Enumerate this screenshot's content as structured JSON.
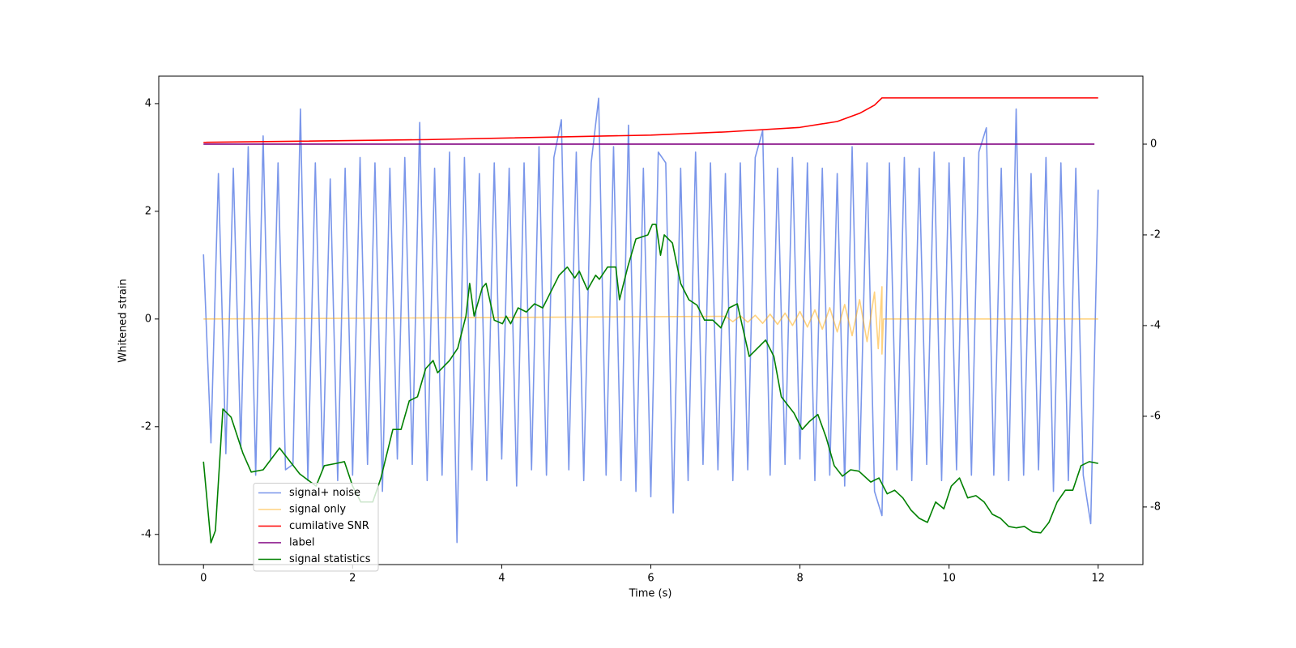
{
  "chart_data": {
    "type": "line",
    "xlabel": "Time (s)",
    "ylabel": "Whitened strain",
    "xlim": [
      -0.6,
      12.6
    ],
    "xticks": [
      0,
      2,
      4,
      6,
      8,
      10,
      12
    ],
    "ylim": [
      -4.56,
      4.51
    ],
    "yticks": [
      -4,
      -2,
      0,
      2,
      4
    ],
    "y2lim": [
      -9.27,
      1.5
    ],
    "y2ticks": [
      -8,
      -6,
      -4,
      -2,
      0
    ],
    "legend": "lower left",
    "series": [
      {
        "name": "signal+ noise",
        "color": "#4169e1",
        "alpha": 0.7,
        "x": [
          0,
          0.1,
          0.2,
          0.3,
          0.4,
          0.5,
          0.6,
          0.7,
          0.8,
          0.9,
          1,
          1.1,
          1.2,
          1.3,
          1.4,
          1.5,
          1.6,
          1.7,
          1.8,
          1.9,
          2,
          2.1,
          2.2,
          2.3,
          2.4,
          2.5,
          2.6,
          2.7,
          2.8,
          2.9,
          3,
          3.1,
          3.2,
          3.3,
          3.4,
          3.5,
          3.6,
          3.7,
          3.8,
          3.9,
          4,
          4.1,
          4.2,
          4.3,
          4.4,
          4.5,
          4.6,
          4.7,
          4.8,
          4.9,
          5,
          5.1,
          5.2,
          5.3,
          5.4,
          5.5,
          5.6,
          5.7,
          5.8,
          5.9,
          6,
          6.1,
          6.2,
          6.3,
          6.4,
          6.5,
          6.6,
          6.7,
          6.8,
          6.9,
          7,
          7.1,
          7.2,
          7.3,
          7.4,
          7.5,
          7.6,
          7.7,
          7.8,
          7.9,
          8,
          8.1,
          8.2,
          8.3,
          8.4,
          8.5,
          8.6,
          8.7,
          8.8,
          8.9,
          9,
          9.1,
          9.2,
          9.3,
          9.4,
          9.5,
          9.6,
          9.7,
          9.8,
          9.9,
          10,
          10.1,
          10.2,
          10.3,
          10.4,
          10.5,
          10.6,
          10.7,
          10.8,
          10.9,
          11,
          11.1,
          11.2,
          11.3,
          11.4,
          11.5,
          11.6,
          11.7,
          11.8,
          11.9,
          12
        ],
        "values": [
          1.2,
          -2.3,
          2.7,
          -2.5,
          2.8,
          -2.4,
          3.2,
          -2.9,
          3.4,
          -2.6,
          2.9,
          -2.8,
          -2.7,
          3.9,
          -3.0,
          2.9,
          -2.8,
          2.6,
          -3.0,
          2.8,
          -2.9,
          3.0,
          -2.7,
          2.9,
          -3.2,
          2.8,
          -2.6,
          3.0,
          -2.7,
          3.65,
          -3.0,
          2.8,
          -2.9,
          3.1,
          -4.15,
          3.0,
          -2.8,
          2.7,
          -3.0,
          2.9,
          -2.6,
          2.8,
          -3.1,
          2.9,
          -2.8,
          3.2,
          -2.9,
          3.0,
          3.7,
          -2.8,
          3.1,
          -3.0,
          2.9,
          4.1,
          -2.9,
          3.2,
          -3.0,
          3.6,
          -3.2,
          2.8,
          -3.3,
          3.1,
          2.9,
          -3.6,
          2.8,
          -3.0,
          3.1,
          -2.7,
          2.9,
          -2.8,
          2.7,
          -3.0,
          2.9,
          -2.8,
          3.0,
          3.5,
          -2.9,
          2.8,
          -2.7,
          3.0,
          -2.6,
          2.9,
          -3.0,
          2.8,
          -2.9,
          2.7,
          -3.1,
          3.2,
          -2.8,
          2.9,
          -3.2,
          -3.65,
          2.9,
          -2.8,
          3.0,
          -3.0,
          2.8,
          -2.7,
          3.1,
          -3.0,
          2.9,
          -2.8,
          3.0,
          -2.9,
          3.1,
          3.55,
          -2.9,
          2.8,
          -3.0,
          3.9,
          -2.9,
          2.7,
          -2.8,
          3.0,
          -3.2,
          2.9,
          -3.0,
          2.8,
          -2.9,
          -3.8,
          2.4
        ]
      },
      {
        "name": "signal only",
        "color": "#ffa500",
        "alpha": 0.5,
        "x": [
          0,
          7,
          7.1,
          7.2,
          7.3,
          7.4,
          7.5,
          7.6,
          7.7,
          7.8,
          7.9,
          8,
          8.1,
          8.2,
          8.3,
          8.4,
          8.5,
          8.6,
          8.7,
          8.8,
          8.9,
          9,
          9.05,
          9.1,
          9.1,
          9.12,
          12
        ],
        "values": [
          0,
          0.05,
          -0.05,
          0.06,
          -0.06,
          0.07,
          -0.08,
          0.09,
          -0.1,
          0.11,
          -0.12,
          0.14,
          -0.15,
          0.17,
          -0.19,
          0.21,
          -0.24,
          0.27,
          -0.31,
          0.36,
          -0.42,
          0.5,
          -0.55,
          0.6,
          -0.65,
          0,
          0
        ]
      },
      {
        "name": "cumilative SNR",
        "color": "#ff0000",
        "alpha": 1,
        "axis": "y2",
        "x": [
          0,
          3,
          6,
          7,
          8,
          8.5,
          8.8,
          9,
          9.05,
          9.1,
          12
        ],
        "values": [
          0.04,
          0.1,
          0.2,
          0.27,
          0.37,
          0.5,
          0.68,
          0.86,
          0.94,
          1.02,
          1.02
        ]
      },
      {
        "name": "label",
        "color": "#800080",
        "alpha": 1,
        "axis": "y2",
        "x": [
          0,
          11.95
        ],
        "values": [
          0,
          0
        ]
      },
      {
        "name": "signal statistics",
        "color": "#008000",
        "alpha": 1,
        "axis": "y2",
        "x": [
          0,
          0.1,
          0.16,
          0.26,
          0.37,
          0.53,
          0.64,
          0.8,
          1.02,
          1.29,
          1.51,
          1.62,
          1.78,
          1.89,
          2,
          2.11,
          2.27,
          2.38,
          2.54,
          2.65,
          2.76,
          2.87,
          2.98,
          3.08,
          3.14,
          3.3,
          3.41,
          3.52,
          3.57,
          3.63,
          3.74,
          3.79,
          3.9,
          4.01,
          4.06,
          4.12,
          4.22,
          4.33,
          4.44,
          4.55,
          4.66,
          4.77,
          4.88,
          4.98,
          5.04,
          5.15,
          5.26,
          5.31,
          5.42,
          5.53,
          5.58,
          5.69,
          5.8,
          5.96,
          6.02,
          6.07,
          6.13,
          6.18,
          6.29,
          6.4,
          6.51,
          6.62,
          6.72,
          6.83,
          6.94,
          7.05,
          7.16,
          7.27,
          7.32,
          7.43,
          7.54,
          7.65,
          7.75,
          7.92,
          8.03,
          8.13,
          8.24,
          8.35,
          8.46,
          8.57,
          8.68,
          8.79,
          8.95,
          9.06,
          9.17,
          9.27,
          9.38,
          9.49,
          9.6,
          9.71,
          9.82,
          9.93,
          10.03,
          10.14,
          10.25,
          10.36,
          10.47,
          10.58,
          10.69,
          10.8,
          10.9,
          11.01,
          11.12,
          11.23,
          11.34,
          11.45,
          11.56,
          11.66,
          11.77,
          11.88,
          12
        ],
        "values": [
          -7.0,
          -8.79,
          -8.52,
          -5.84,
          -6.02,
          -6.82,
          -7.23,
          -7.18,
          -6.7,
          -7.27,
          -7.54,
          -7.09,
          -7.04,
          -7.0,
          -7.54,
          -7.89,
          -7.89,
          -7.36,
          -6.29,
          -6.29,
          -5.66,
          -5.57,
          -4.95,
          -4.77,
          -5.04,
          -4.77,
          -4.5,
          -3.79,
          -3.07,
          -3.79,
          -3.16,
          -3.07,
          -3.88,
          -3.96,
          -3.79,
          -3.96,
          -3.61,
          -3.7,
          -3.52,
          -3.61,
          -3.25,
          -2.89,
          -2.71,
          -2.95,
          -2.8,
          -3.21,
          -2.89,
          -2.98,
          -2.71,
          -2.71,
          -3.43,
          -2.71,
          -2.09,
          -2.0,
          -1.77,
          -1.77,
          -2.45,
          -2.0,
          -2.18,
          -3.07,
          -3.43,
          -3.55,
          -3.88,
          -3.88,
          -4.05,
          -3.61,
          -3.52,
          -4.32,
          -4.68,
          -4.5,
          -4.32,
          -4.68,
          -5.57,
          -5.93,
          -6.29,
          -6.11,
          -5.96,
          -6.46,
          -7.09,
          -7.32,
          -7.18,
          -7.21,
          -7.45,
          -7.36,
          -7.71,
          -7.63,
          -7.8,
          -8.07,
          -8.25,
          -8.34,
          -7.89,
          -8.04,
          -7.54,
          -7.36,
          -7.8,
          -7.75,
          -7.89,
          -8.16,
          -8.25,
          -8.43,
          -8.46,
          -8.43,
          -8.55,
          -8.57,
          -8.34,
          -7.89,
          -7.63,
          -7.63,
          -7.09,
          -7.0,
          -7.04
        ]
      }
    ]
  }
}
